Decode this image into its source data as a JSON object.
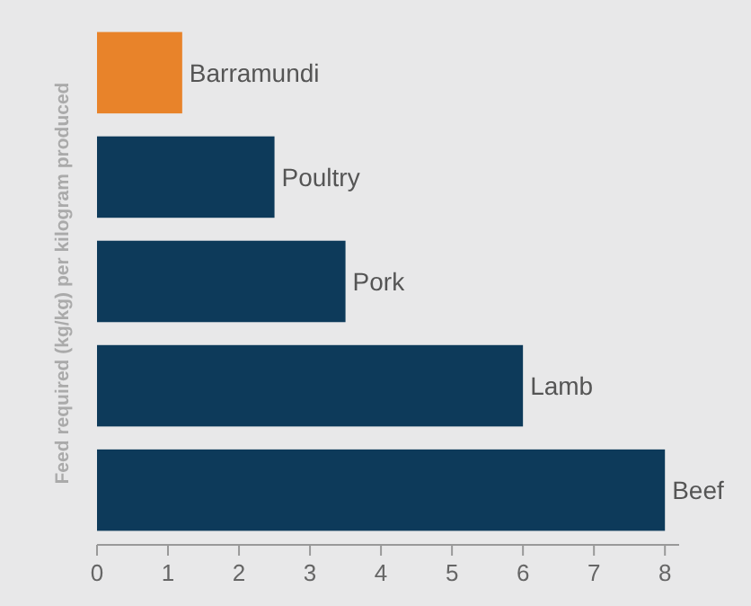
{
  "chart_data": {
    "type": "bar",
    "orientation": "horizontal",
    "ylabel": "Feed required (kg/kg) per kilogram produced",
    "categories": [
      "Barramundi",
      "Poultry",
      "Pork",
      "Lamb",
      "Beef"
    ],
    "values": [
      1.2,
      2.5,
      3.5,
      6,
      8
    ],
    "colors": [
      "#e8832a",
      "#0d3a5a",
      "#0d3a5a",
      "#0d3a5a",
      "#0d3a5a"
    ],
    "xlim": [
      0,
      8.2
    ],
    "xticks": [
      0,
      1,
      2,
      3,
      4,
      5,
      6,
      7,
      8
    ],
    "grid": false
  }
}
